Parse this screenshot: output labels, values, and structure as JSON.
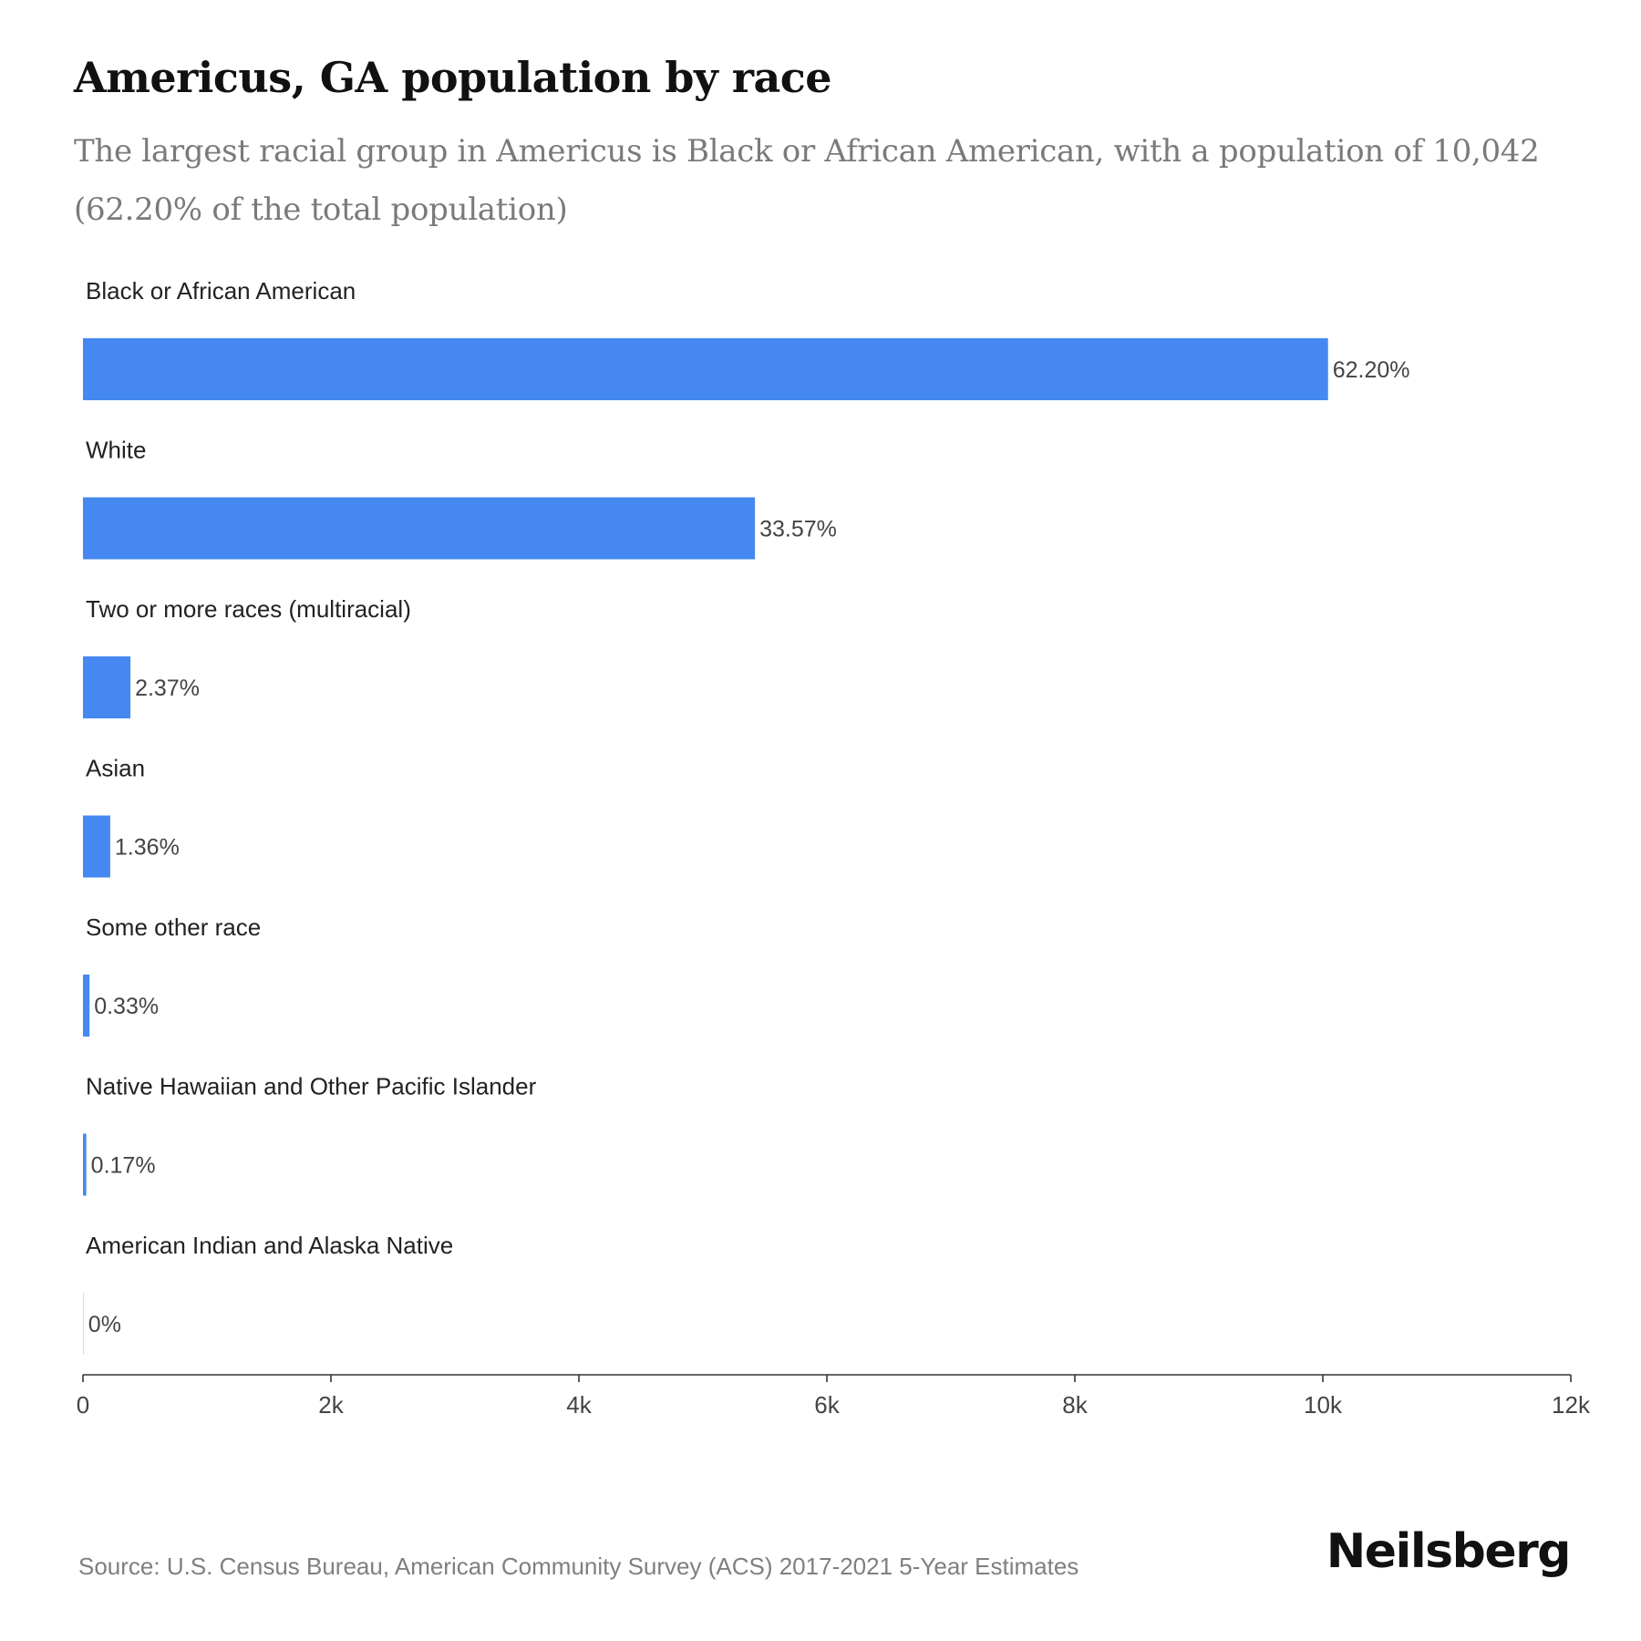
{
  "header": {
    "title": "Americus, GA population by race",
    "subtitle": "The largest racial group in Americus is Black or African American, with a population of 10,042 (62.20% of the total population)"
  },
  "chart_data": {
    "type": "bar",
    "orientation": "horizontal",
    "categories": [
      "Black or African American",
      "White",
      "Two or more races (multiracial)",
      "Asian",
      "Some other race",
      "Native Hawaiian and Other Pacific Islander",
      "American Indian and Alaska Native"
    ],
    "values": [
      10042,
      5420,
      383,
      220,
      53,
      27,
      0
    ],
    "data_labels": [
      "62.20%",
      "33.57%",
      "2.37%",
      "1.36%",
      "0.33%",
      "0.17%",
      "0%"
    ],
    "xlim": [
      0,
      12000
    ],
    "x_ticks": [
      0,
      2000,
      4000,
      6000,
      8000,
      10000,
      12000
    ],
    "x_tick_labels": [
      "0",
      "2k",
      "4k",
      "6k",
      "8k",
      "10k",
      "12k"
    ],
    "grid": false,
    "legend": "none",
    "bar_color": "#4688f1"
  },
  "footer": {
    "source": "Source: U.S. Census Bureau, American Community Survey (ACS) 2017-2021 5-Year Estimates",
    "brand": "Neilsberg"
  }
}
